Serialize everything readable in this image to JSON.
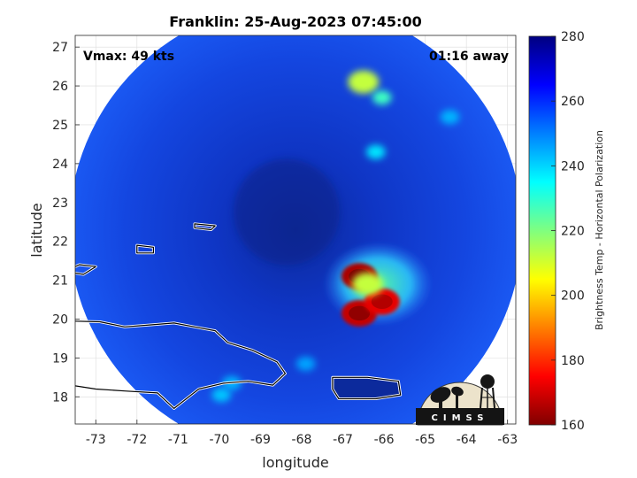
{
  "chart_data": {
    "type": "heatmap",
    "title": "Franklin: 25-Aug-2023 07:45:00",
    "xlabel": "longitude",
    "ylabel": "latitude",
    "xlim": [
      -73.5,
      -62.8
    ],
    "ylim": [
      17.3,
      27.3
    ],
    "xticks": [
      -73,
      -72,
      -71,
      -70,
      -69,
      -68,
      -67,
      -66,
      -65,
      -64,
      -63
    ],
    "yticks": [
      18,
      19,
      20,
      21,
      22,
      23,
      24,
      25,
      26,
      27
    ],
    "grid": true,
    "annotations": {
      "vmax": "Vmax: 49 kts",
      "time_offset": "01:16 away"
    },
    "colorbar": {
      "label": "Brightness Temp - Horizontal Polarization",
      "range": [
        160,
        280
      ],
      "ticks": [
        160,
        180,
        200,
        220,
        240,
        260,
        280
      ],
      "colormap": "jet"
    },
    "swath_center": {
      "lon": -68.15,
      "lat": 22.3
    },
    "features": [
      {
        "label": "convective core",
        "lon": -66.6,
        "lat": 21.1,
        "tb": 165
      },
      {
        "label": "convective core",
        "lon": -66.6,
        "lat": 20.15,
        "tb": 168
      },
      {
        "label": "convective core",
        "lon": -66.05,
        "lat": 20.45,
        "tb": 172
      },
      {
        "label": "convective band",
        "lon": -66.4,
        "lat": 20.9,
        "tb": 212
      },
      {
        "label": "rain cell",
        "lon": -66.5,
        "lat": 26.1,
        "tb": 212
      },
      {
        "label": "rain cell",
        "lon": -66.05,
        "lat": 25.7,
        "tb": 228
      },
      {
        "label": "rain cell",
        "lon": -66.2,
        "lat": 24.3,
        "tb": 238
      },
      {
        "label": "rain cell",
        "lon": -64.4,
        "lat": 25.2,
        "tb": 244
      },
      {
        "label": "rain cell",
        "lon": -69.95,
        "lat": 18.05,
        "tb": 242
      },
      {
        "label": "rain cell",
        "lon": -69.7,
        "lat": 18.35,
        "tb": 244
      },
      {
        "label": "rain cell",
        "lon": -67.9,
        "lat": 18.85,
        "tb": 246
      }
    ]
  },
  "logo": {
    "text": "CIMSS"
  }
}
